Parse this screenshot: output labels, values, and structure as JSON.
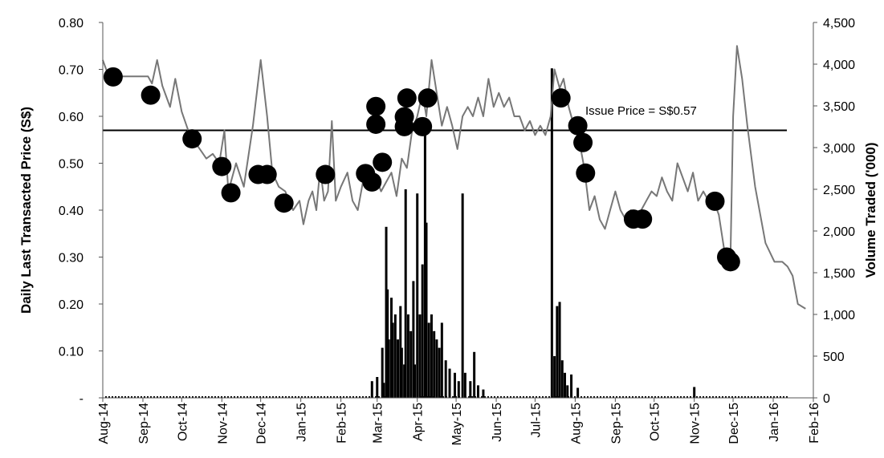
{
  "chart_data": {
    "type": "line",
    "title": "",
    "ylabel": "Daily Last Transacted Price (S$)",
    "y2label": "Volume Traded ('000)",
    "ylim": [
      0,
      0.8
    ],
    "y2lim": [
      0,
      4500
    ],
    "grid": false,
    "legend": "none",
    "y_ticks": [
      "-",
      "0.10",
      "0.20",
      "0.30",
      "0.40",
      "0.50",
      "0.60",
      "0.70",
      "0.80"
    ],
    "y2_ticks": [
      "0",
      "500",
      "1,000",
      "1,500",
      "2,000",
      "2,500",
      "3,000",
      "3,500",
      "4,000",
      "4,500"
    ],
    "x_ticks": [
      "Aug-14",
      "Sep-14",
      "Oct-14",
      "Nov-14",
      "Dec-14",
      "Jan-15",
      "Feb-15",
      "Mar-15",
      "Apr-15",
      "May-15",
      "Jun-15",
      "Jul-15",
      "Aug-15",
      "Sep-15",
      "Oct-15",
      "Nov-15",
      "Dec-15",
      "Jan-16",
      "Feb-16"
    ],
    "x_range": [
      "2014-08-01",
      "2016-02-01"
    ],
    "issue_price": {
      "value": 0.57,
      "label": "Issue Price = S$0.57"
    },
    "price_series": {
      "color": "#777777",
      "points": [
        [
          "2014-08-01",
          0.72
        ],
        [
          "2014-08-05",
          0.69
        ],
        [
          "2014-08-12",
          0.685
        ],
        [
          "2014-08-20",
          0.685
        ],
        [
          "2014-08-28",
          0.685
        ],
        [
          "2014-09-05",
          0.685
        ],
        [
          "2014-09-08",
          0.67
        ],
        [
          "2014-09-12",
          0.72
        ],
        [
          "2014-09-16",
          0.665
        ],
        [
          "2014-09-22",
          0.62
        ],
        [
          "2014-09-26",
          0.68
        ],
        [
          "2014-10-01",
          0.61
        ],
        [
          "2014-10-06",
          0.57
        ],
        [
          "2014-10-10",
          0.55
        ],
        [
          "2014-10-15",
          0.53
        ],
        [
          "2014-10-20",
          0.51
        ],
        [
          "2014-10-25",
          0.52
        ],
        [
          "2014-10-30",
          0.5
        ],
        [
          "2014-11-03",
          0.57
        ],
        [
          "2014-11-06",
          0.44
        ],
        [
          "2014-11-12",
          0.5
        ],
        [
          "2014-11-18",
          0.45
        ],
        [
          "2014-11-25",
          0.58
        ],
        [
          "2014-12-01",
          0.72
        ],
        [
          "2014-12-06",
          0.6
        ],
        [
          "2014-12-10",
          0.48
        ],
        [
          "2014-12-15",
          0.45
        ],
        [
          "2014-12-20",
          0.44
        ],
        [
          "2014-12-26",
          0.4
        ],
        [
          "2014-12-31",
          0.42
        ],
        [
          "2015-01-03",
          0.37
        ],
        [
          "2015-01-07",
          0.42
        ],
        [
          "2015-01-10",
          0.44
        ],
        [
          "2015-01-13",
          0.4
        ],
        [
          "2015-01-16",
          0.49
        ],
        [
          "2015-01-19",
          0.42
        ],
        [
          "2015-01-22",
          0.44
        ],
        [
          "2015-01-25",
          0.59
        ],
        [
          "2015-01-28",
          0.42
        ],
        [
          "2015-02-01",
          0.45
        ],
        [
          "2015-02-06",
          0.48
        ],
        [
          "2015-02-10",
          0.42
        ],
        [
          "2015-02-14",
          0.4
        ],
        [
          "2015-02-18",
          0.46
        ],
        [
          "2015-02-23",
          0.45
        ],
        [
          "2015-02-28",
          0.47
        ],
        [
          "2015-03-04",
          0.44
        ],
        [
          "2015-03-08",
          0.46
        ],
        [
          "2015-03-12",
          0.48
        ],
        [
          "2015-03-16",
          0.43
        ],
        [
          "2015-03-20",
          0.51
        ],
        [
          "2015-03-24",
          0.49
        ],
        [
          "2015-03-28",
          0.57
        ],
        [
          "2015-04-01",
          0.6
        ],
        [
          "2015-04-05",
          0.65
        ],
        [
          "2015-04-08",
          0.6
        ],
        [
          "2015-04-12",
          0.72
        ],
        [
          "2015-04-16",
          0.65
        ],
        [
          "2015-04-20",
          0.58
        ],
        [
          "2015-04-24",
          0.62
        ],
        [
          "2015-04-28",
          0.58
        ],
        [
          "2015-05-02",
          0.53
        ],
        [
          "2015-05-06",
          0.6
        ],
        [
          "2015-05-10",
          0.62
        ],
        [
          "2015-05-14",
          0.6
        ],
        [
          "2015-05-18",
          0.64
        ],
        [
          "2015-05-22",
          0.6
        ],
        [
          "2015-05-26",
          0.68
        ],
        [
          "2015-05-30",
          0.62
        ],
        [
          "2015-06-03",
          0.65
        ],
        [
          "2015-06-07",
          0.62
        ],
        [
          "2015-06-11",
          0.64
        ],
        [
          "2015-06-15",
          0.6
        ],
        [
          "2015-06-19",
          0.6
        ],
        [
          "2015-06-23",
          0.57
        ],
        [
          "2015-06-27",
          0.59
        ],
        [
          "2015-07-01",
          0.56
        ],
        [
          "2015-07-05",
          0.58
        ],
        [
          "2015-07-09",
          0.56
        ],
        [
          "2015-07-13",
          0.6
        ],
        [
          "2015-07-16",
          0.7
        ],
        [
          "2015-07-20",
          0.66
        ],
        [
          "2015-07-23",
          0.68
        ],
        [
          "2015-07-27",
          0.62
        ],
        [
          "2015-07-31",
          0.58
        ],
        [
          "2015-08-04",
          0.55
        ],
        [
          "2015-08-08",
          0.49
        ],
        [
          "2015-08-12",
          0.4
        ],
        [
          "2015-08-16",
          0.43
        ],
        [
          "2015-08-20",
          0.38
        ],
        [
          "2015-08-24",
          0.36
        ],
        [
          "2015-08-28",
          0.4
        ],
        [
          "2015-09-01",
          0.44
        ],
        [
          "2015-09-05",
          0.4
        ],
        [
          "2015-09-09",
          0.38
        ],
        [
          "2015-09-13",
          0.4
        ],
        [
          "2015-09-17",
          0.38
        ],
        [
          "2015-09-21",
          0.4
        ],
        [
          "2015-09-25",
          0.42
        ],
        [
          "2015-09-29",
          0.44
        ],
        [
          "2015-10-03",
          0.43
        ],
        [
          "2015-10-07",
          0.47
        ],
        [
          "2015-10-11",
          0.44
        ],
        [
          "2015-10-15",
          0.42
        ],
        [
          "2015-10-19",
          0.5
        ],
        [
          "2015-10-23",
          0.47
        ],
        [
          "2015-10-27",
          0.44
        ],
        [
          "2015-10-31",
          0.48
        ],
        [
          "2015-11-04",
          0.42
        ],
        [
          "2015-11-08",
          0.44
        ],
        [
          "2015-11-12",
          0.42
        ],
        [
          "2015-11-16",
          0.42
        ],
        [
          "2015-11-20",
          0.39
        ],
        [
          "2015-11-25",
          0.3
        ],
        [
          "2015-11-29",
          0.3
        ],
        [
          "2015-12-01",
          0.6
        ],
        [
          "2015-12-04",
          0.75
        ],
        [
          "2015-12-08",
          0.68
        ],
        [
          "2015-12-12",
          0.58
        ],
        [
          "2015-12-18",
          0.45
        ],
        [
          "2015-12-26",
          0.33
        ],
        [
          "2016-01-02",
          0.29
        ],
        [
          "2016-01-08",
          0.29
        ],
        [
          "2016-01-12",
          0.28
        ],
        [
          "2016-01-16",
          0.26
        ],
        [
          "2016-01-20",
          0.2
        ],
        [
          "2016-01-26",
          0.19
        ]
      ]
    },
    "volume_series": {
      "color": "#000000",
      "bars": [
        [
          "2015-02-25",
          200
        ],
        [
          "2015-03-01",
          250
        ],
        [
          "2015-03-05",
          600
        ],
        [
          "2015-03-06",
          180
        ],
        [
          "2015-03-08",
          2050
        ],
        [
          "2015-03-09",
          1300
        ],
        [
          "2015-03-10",
          700
        ],
        [
          "2015-03-12",
          1200
        ],
        [
          "2015-03-13",
          900
        ],
        [
          "2015-03-15",
          1000
        ],
        [
          "2015-03-17",
          700
        ],
        [
          "2015-03-19",
          1100
        ],
        [
          "2015-03-20",
          600
        ],
        [
          "2015-03-22",
          400
        ],
        [
          "2015-03-23",
          2500
        ],
        [
          "2015-03-25",
          1000
        ],
        [
          "2015-03-27",
          800
        ],
        [
          "2015-03-29",
          1400
        ],
        [
          "2015-03-30",
          400
        ],
        [
          "2015-04-01",
          2450
        ],
        [
          "2015-04-03",
          1000
        ],
        [
          "2015-04-05",
          1600
        ],
        [
          "2015-04-07",
          3200
        ],
        [
          "2015-04-08",
          2100
        ],
        [
          "2015-04-10",
          900
        ],
        [
          "2015-04-12",
          1000
        ],
        [
          "2015-04-14",
          800
        ],
        [
          "2015-04-16",
          700
        ],
        [
          "2015-04-18",
          600
        ],
        [
          "2015-04-20",
          900
        ],
        [
          "2015-04-23",
          450
        ],
        [
          "2015-04-26",
          350
        ],
        [
          "2015-04-30",
          300
        ],
        [
          "2015-05-03",
          200
        ],
        [
          "2015-05-06",
          2450
        ],
        [
          "2015-05-08",
          300
        ],
        [
          "2015-05-12",
          200
        ],
        [
          "2015-05-15",
          550
        ],
        [
          "2015-05-18",
          150
        ],
        [
          "2015-05-22",
          100
        ],
        [
          "2015-07-14",
          3950
        ],
        [
          "2015-07-16",
          500
        ],
        [
          "2015-07-18",
          1100
        ],
        [
          "2015-07-20",
          1150
        ],
        [
          "2015-07-22",
          450
        ],
        [
          "2015-07-24",
          300
        ],
        [
          "2015-07-26",
          150
        ],
        [
          "2015-07-29",
          280
        ],
        [
          "2015-08-03",
          120
        ],
        [
          "2015-11-01",
          130
        ]
      ]
    },
    "event_markers": {
      "color": "#000000",
      "points": [
        [
          "2014-08-09",
          0.684
        ],
        [
          "2014-09-07",
          0.645
        ],
        [
          "2014-10-09",
          0.552
        ],
        [
          "2014-11-01",
          0.493
        ],
        [
          "2014-11-08",
          0.437
        ],
        [
          "2014-11-29",
          0.476
        ],
        [
          "2014-12-06",
          0.476
        ],
        [
          "2014-12-19",
          0.415
        ],
        [
          "2015-01-20",
          0.476
        ],
        [
          "2015-02-20",
          0.478
        ],
        [
          "2015-02-25",
          0.46
        ],
        [
          "2015-02-28",
          0.621
        ],
        [
          "2015-02-28",
          0.583
        ],
        [
          "2015-03-05",
          0.502
        ],
        [
          "2015-03-22",
          0.599
        ],
        [
          "2015-03-22",
          0.578
        ],
        [
          "2015-03-24",
          0.639
        ],
        [
          "2015-04-05",
          0.578
        ],
        [
          "2015-04-09",
          0.639
        ],
        [
          "2015-07-21",
          0.639
        ],
        [
          "2015-08-03",
          0.58
        ],
        [
          "2015-08-07",
          0.544
        ],
        [
          "2015-08-09",
          0.479
        ],
        [
          "2015-09-15",
          0.381
        ],
        [
          "2015-09-22",
          0.381
        ],
        [
          "2015-11-17",
          0.419
        ],
        [
          "2015-11-26",
          0.3
        ],
        [
          "2015-11-29",
          0.29
        ]
      ]
    }
  }
}
